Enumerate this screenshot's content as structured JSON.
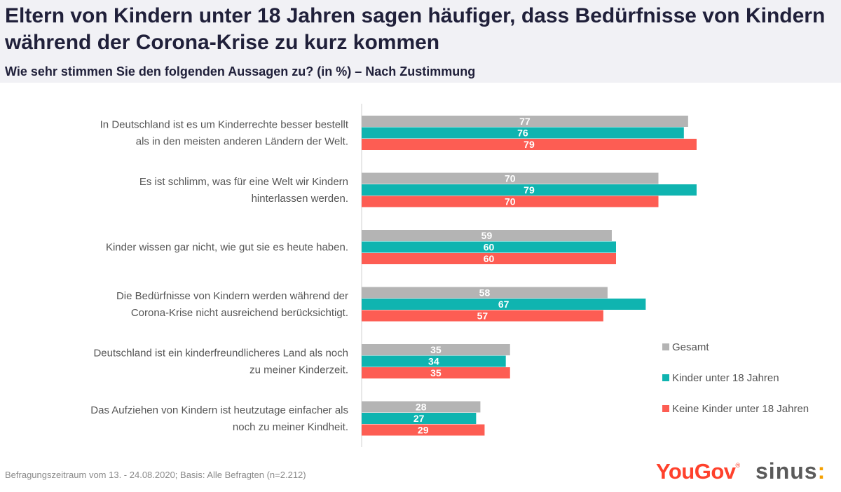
{
  "header": {
    "title": "Eltern von Kindern unter 18 Jahren sagen häufiger, dass Bedürfnisse von Kindern während der Corona-Krise zu kurz kommen",
    "subtitle": "Wie sehr stimmen Sie den folgenden Aussagen zu? (in %) – Nach Zustimmung"
  },
  "chart_data": {
    "type": "bar",
    "orientation": "horizontal",
    "title": "Eltern von Kindern unter 18 Jahren sagen häufiger, dass Bedürfnisse von Kindern während der Corona-Krise zu kurz kommen",
    "subtitle": "Wie sehr stimmen Sie den folgenden Aussagen zu? (in %) – Nach Zustimmung",
    "xlabel": "",
    "ylabel": "",
    "xlim": [
      0,
      100
    ],
    "grid": false,
    "legend_position": "right",
    "categories": [
      [
        "In Deutschland ist es um Kinderrechte besser bestellt",
        "als in den meisten anderen Ländern der Welt."
      ],
      [
        "Es ist schlimm, was für eine Welt wir Kindern",
        "hinterlassen werden."
      ],
      [
        "Kinder wissen gar nicht, wie gut sie es heute haben."
      ],
      [
        "Die Bedürfnisse von Kindern werden während der",
        "Corona-Krise nicht ausreichend berücksichtigt."
      ],
      [
        "Deutschland ist ein kinderfreundlicheres Land als noch",
        "zu meiner Kinderzeit."
      ],
      [
        "Das Aufziehen von Kindern ist heutzutage einfacher als",
        "noch zu meiner Kindheit."
      ]
    ],
    "series": [
      {
        "name": "Gesamt",
        "color": "#b4b4b4",
        "values": [
          77,
          70,
          59,
          58,
          35,
          28
        ]
      },
      {
        "name": "Kinder unter 18 Jahren",
        "color": "#0fb4b0",
        "values": [
          76,
          79,
          60,
          67,
          34,
          27
        ]
      },
      {
        "name": "Keine Kinder unter 18 Jahren",
        "color": "#fd5d53",
        "values": [
          79,
          70,
          60,
          57,
          35,
          29
        ]
      }
    ]
  },
  "footer": {
    "note": "Befragungszeitraum vom 13. - 24.08.2020;  Basis: Alle Befragten (n=2.212)",
    "logo_yougov": "YouGov",
    "logo_yougov_mark": "®",
    "logo_sinus": "sinus",
    "logo_sinus_mark": ":"
  }
}
